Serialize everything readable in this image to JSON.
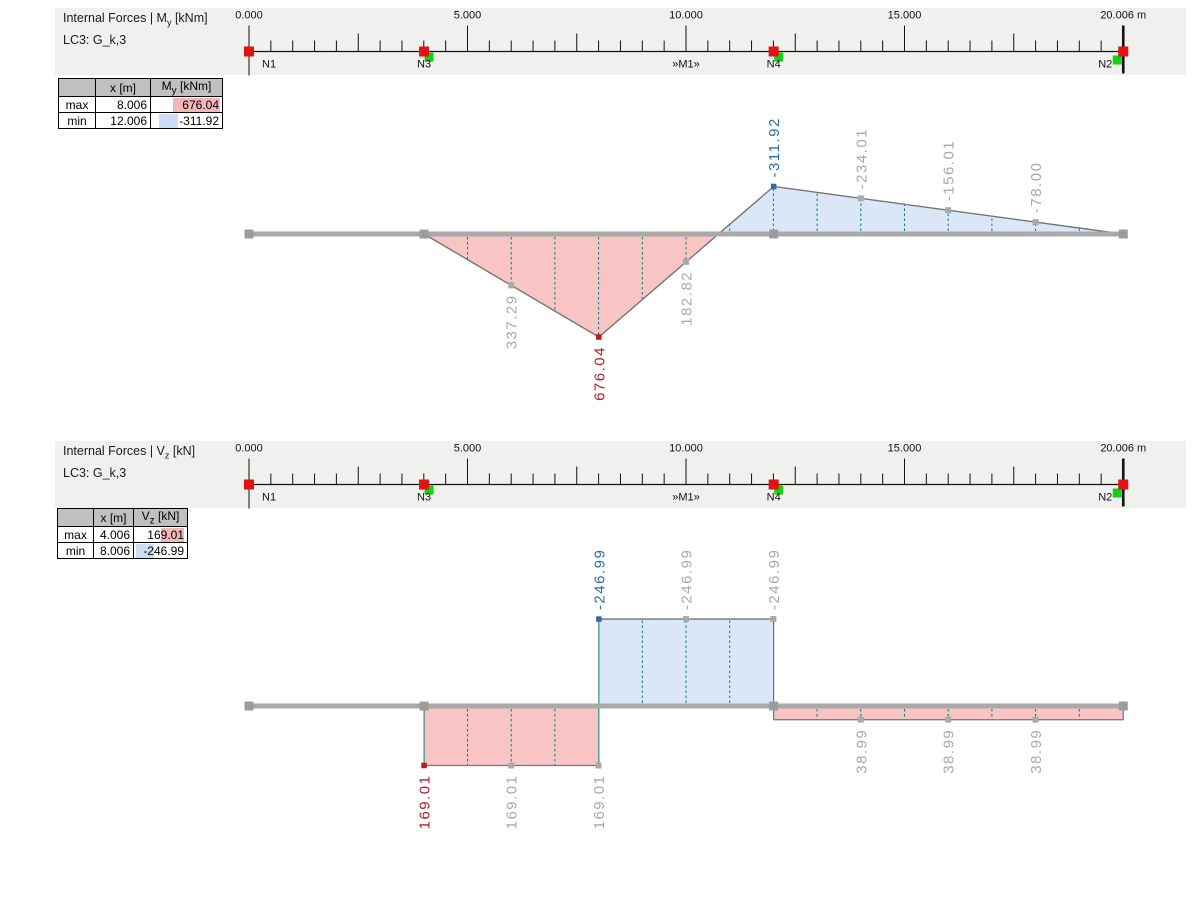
{
  "colors": {
    "band_bg": "#f0f0ee",
    "table_header_bg": "#c0c0c0",
    "highlight_max": "#f4b7b9",
    "highlight_min": "#cdddf5",
    "fill_positive": "#f8c5c4",
    "fill_negative": "#dbe6f7",
    "outline": "#757575",
    "beam": "#a9a9a9",
    "dash_teal": "#007f80",
    "label_gray": "#a9a9a9",
    "label_max_red": "#b01e28",
    "label_min_blue": "#2e6da8",
    "marker_max": "#c11818",
    "marker_min": "#2e6da8",
    "node_red": "#e31212",
    "node_green": "#12d312",
    "node_gray": "#9c9c9c",
    "ruler_ink": "#111111"
  },
  "ruler": {
    "length_m": 20.006,
    "major_labels": [
      {
        "m": 0,
        "text": "0.000"
      },
      {
        "m": 5,
        "text": "5.000"
      },
      {
        "m": 10,
        "text": "10.000"
      },
      {
        "m": 15,
        "text": "15.000"
      },
      {
        "m": 20.006,
        "text": "20.006 m"
      }
    ],
    "member_label": {
      "text": "»M1»",
      "m": 10.0
    },
    "nodes": [
      {
        "name": "N1",
        "m": 0,
        "green": null,
        "label": "right"
      },
      {
        "name": "N3",
        "m": 4.006,
        "green": "right",
        "label": "center"
      },
      {
        "name": "N4",
        "m": 12.006,
        "green": "right",
        "label": "center"
      },
      {
        "name": "N2",
        "m": 20.006,
        "green": "left",
        "label": "left"
      }
    ]
  },
  "panels": [
    {
      "title_pre": "Internal Forces | M",
      "title_sub": "y",
      "title_post": " [kNm]",
      "loadcase": "LC3: G_k,3",
      "table": {
        "col1": "x [m]",
        "col2_pre": "M",
        "col2_sub": "y",
        "col2_post": " [kNm]",
        "rows": [
          {
            "label": "max",
            "x": "8.006",
            "value": "676.04"
          },
          {
            "label": "min",
            "x": "12.006",
            "value": "-311.92"
          }
        ]
      }
    },
    {
      "title_pre": "Internal Forces | V",
      "title_sub": "z",
      "title_post": " [kN]",
      "loadcase": "LC3: G_k,3",
      "table": {
        "col1": "x [m]",
        "col2_pre": "V",
        "col2_sub": "z",
        "col2_post": " [kN]",
        "rows": [
          {
            "label": "max",
            "x": "4.006",
            "value": "169.01"
          },
          {
            "label": "min",
            "x": "8.006",
            "value": "-246.99"
          }
        ]
      }
    }
  ],
  "chart_data": [
    {
      "type": "area",
      "name": "bending-moment-diagram",
      "title": "Internal Forces | My [kNm]",
      "load_case": "LC3: G_k,3",
      "xlabel": "x [m]",
      "ylabel": "My [kNm]",
      "x_range_m": [
        0,
        20.006
      ],
      "positive_plotted_down": true,
      "x_m": [
        0,
        4.006,
        8.006,
        12.006,
        20.006
      ],
      "values_kNm": [
        0,
        0,
        676.04,
        -311.92,
        0
      ],
      "max": {
        "x_m": 8.006,
        "value": 676.04
      },
      "min": {
        "x_m": 12.006,
        "value": -311.92
      },
      "value_labels": [
        {
          "m": 6.0,
          "text": "337.29",
          "style": "gray"
        },
        {
          "m": 8.006,
          "text": "676.04",
          "style": "max"
        },
        {
          "m": 10.0,
          "text": "182.82",
          "style": "gray"
        },
        {
          "m": 12.006,
          "text": "-311.92",
          "style": "min"
        },
        {
          "m": 14.0,
          "text": "-234.01",
          "style": "gray"
        },
        {
          "m": 16.0,
          "text": "-156.01",
          "style": "gray"
        },
        {
          "m": 18.0,
          "text": "-78.00",
          "style": "gray"
        }
      ],
      "grid_lines_m": [
        5,
        6,
        7,
        8,
        9,
        10,
        11,
        12,
        13,
        14,
        15,
        16,
        17,
        18,
        19
      ]
    },
    {
      "type": "step",
      "name": "shear-force-diagram",
      "title": "Internal Forces | Vz [kN]",
      "load_case": "LC3: G_k,3",
      "xlabel": "x [m]",
      "ylabel": "Vz [kN]",
      "x_range_m": [
        0,
        20.006
      ],
      "positive_plotted_down": true,
      "blocks": [
        {
          "from_m": 4.006,
          "to_m": 8.006,
          "value_kN": 169.01
        },
        {
          "from_m": 8.006,
          "to_m": 12.006,
          "value_kN": -246.99
        },
        {
          "from_m": 12.006,
          "to_m": 20.006,
          "value_kN": 38.99
        }
      ],
      "max": {
        "x_m": 4.006,
        "value": 169.01
      },
      "min": {
        "x_m": 8.006,
        "value": -246.99
      },
      "value_labels": [
        {
          "m": 4.006,
          "text": "169.01",
          "style": "max"
        },
        {
          "m": 6.0,
          "text": "169.01",
          "style": "gray"
        },
        {
          "m": 8.0,
          "text": "169.01",
          "style": "gray"
        },
        {
          "m": 8.006,
          "text": "-246.99",
          "style": "min"
        },
        {
          "m": 10.0,
          "text": "-246.99",
          "style": "gray"
        },
        {
          "m": 12.0,
          "text": "-246.99",
          "style": "gray"
        },
        {
          "m": 14.0,
          "text": "38.99",
          "style": "gray"
        },
        {
          "m": 16.0,
          "text": "38.99",
          "style": "gray"
        },
        {
          "m": 18.0,
          "text": "38.99",
          "style": "gray"
        }
      ],
      "grid_lines_m": [
        5,
        6,
        7,
        9,
        10,
        11,
        13,
        14,
        15,
        16,
        17,
        18,
        19
      ]
    }
  ]
}
